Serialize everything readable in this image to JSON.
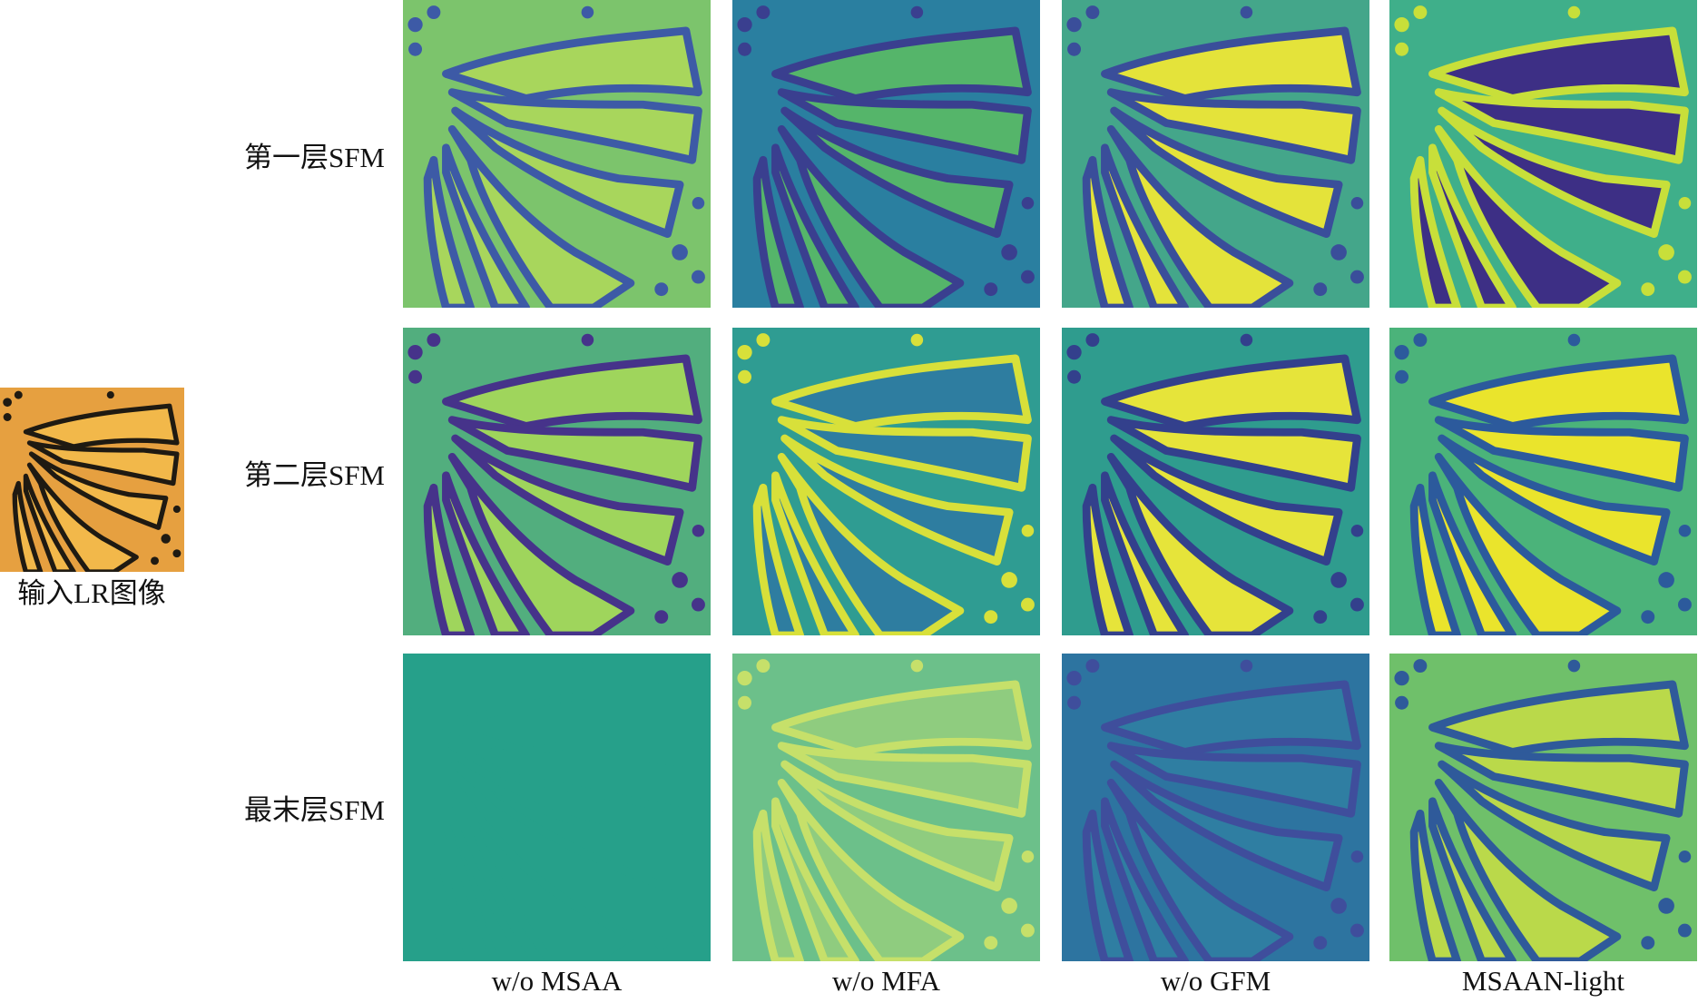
{
  "input_label": "输入LR图像",
  "row_labels": [
    "第一层SFM",
    "第二层SFM",
    "最末层SFM"
  ],
  "column_labels": [
    "w/o MSAA",
    "w/o MFA",
    "w/o GFM",
    "MSAAN-light"
  ]
}
